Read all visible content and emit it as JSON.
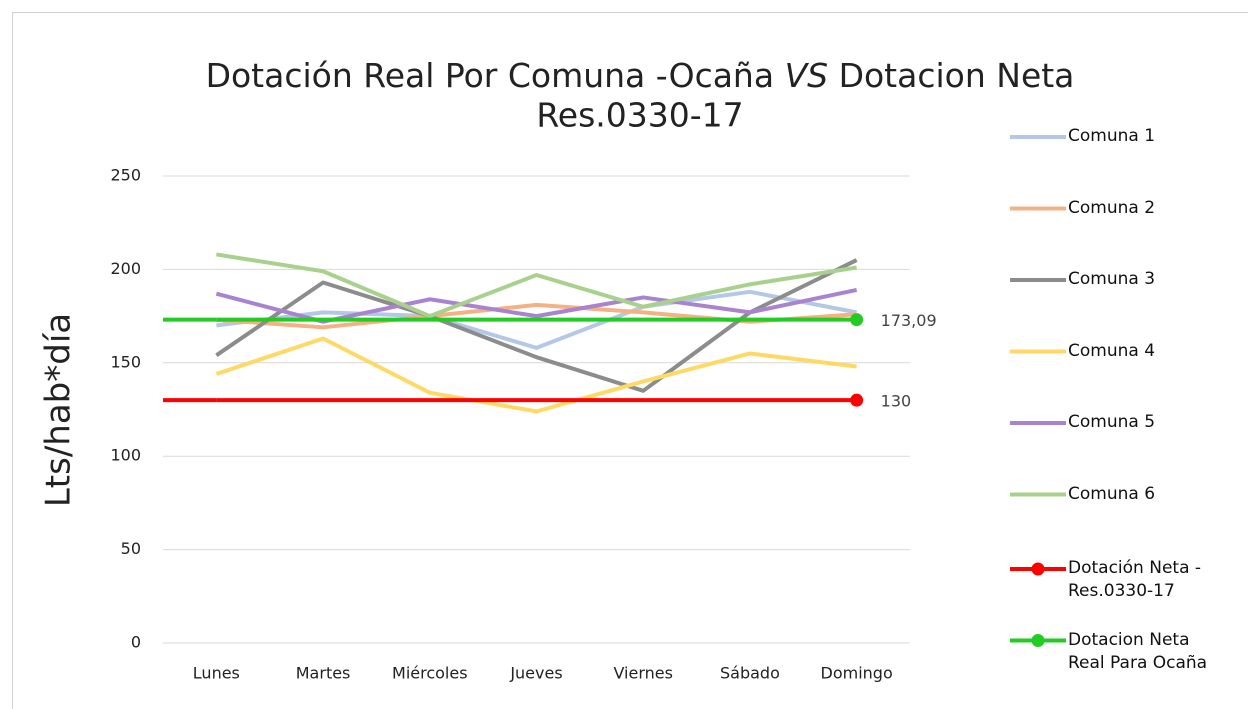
{
  "chart_data": {
    "type": "line",
    "title": [
      "Dotación Real Por Comuna -Ocaña ",
      "VS",
      " Dotacion Neta",
      "Res.0330-17"
    ],
    "y_label": "Lts/hab*día",
    "categories": [
      "Lunes",
      "Martes",
      "Miércoles",
      "Jueves",
      "Viernes",
      "Sábado",
      "Domingo"
    ],
    "ylim": [
      0,
      250
    ],
    "yticks": [
      0,
      50,
      100,
      150,
      200,
      250
    ],
    "grid": true,
    "legend": "right",
    "series": [
      {
        "name": "Comuna 1",
        "color": "#b4c7e7",
        "values": [
          170,
          177,
          175,
          158,
          180,
          188,
          177
        ]
      },
      {
        "name": "Comuna 2",
        "color": "#f4b183",
        "values": [
          173,
          169,
          175,
          181,
          177,
          172,
          176
        ]
      },
      {
        "name": "Comuna 3",
        "color": "#8c8c8c",
        "values": [
          154,
          193,
          175,
          153,
          135,
          177,
          205
        ]
      },
      {
        "name": "Comuna 4",
        "color": "#ffd966",
        "values": [
          144,
          163,
          134,
          124,
          140,
          155,
          148
        ]
      },
      {
        "name": "Comuna 5",
        "color": "#a983d0",
        "values": [
          187,
          172,
          184,
          175,
          185,
          177,
          189
        ]
      },
      {
        "name": "Comuna 6",
        "color": "#a9d18e",
        "values": [
          208,
          199,
          175,
          197,
          180,
          192,
          201
        ]
      },
      {
        "name": "Dotación Neta - Res.0330-17",
        "color": "#ff0000",
        "marker": "circle",
        "values": [
          130,
          130,
          130,
          130,
          130,
          130,
          130
        ],
        "value_labels": [
          null,
          null,
          null,
          null,
          null,
          null,
          "130"
        ]
      },
      {
        "name": "Dotacion Neta Real Para Ocaña",
        "color": "#22cc22",
        "marker": "circle",
        "values": [
          173.09,
          173.09,
          173.09,
          173.09,
          173.09,
          173.09,
          173.09
        ],
        "value_labels": [
          null,
          null,
          null,
          null,
          null,
          null,
          "173,09"
        ]
      }
    ]
  }
}
